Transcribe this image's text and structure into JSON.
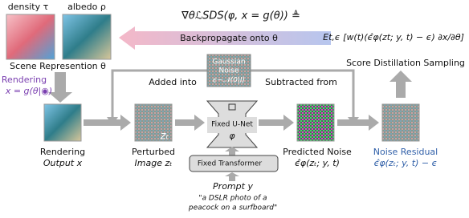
{
  "scene": {
    "density_label": "density τ",
    "albedo_label": "albedo ρ",
    "caption": "Scene Represention θ"
  },
  "rendering": {
    "label": "Rendering",
    "formula": "x = g(θ|◉)"
  },
  "sds": {
    "gradient": "∇θℒSDS(φ, x = g(θ)) ≜",
    "expectation": "Et,ϵ [w(t)(ϵ̂φ(zt; y, t) − ϵ) ∂x/∂θ]",
    "title": "Score Distillation Sampling"
  },
  "backprop": "Backpropagate onto θ",
  "noise": {
    "title_lines": [
      "Gaussian",
      "Noise"
    ],
    "formula": "ϵ∼𝒩(0|I)"
  },
  "added": "Added into",
  "subtracted": "Subtracted from",
  "perturbed_overlay": "zₜ",
  "unet": {
    "label": "Fixed U-Net",
    "symbol": "φ"
  },
  "nodes": [
    {
      "caption_lines": [
        "Rendering",
        "Output x"
      ]
    },
    {
      "caption_lines": [
        "Perturbed",
        "Image zₜ"
      ]
    },
    {
      "caption_lines": [
        "Predicted Noise",
        "ϵ̂φ(zₜ; y, t)"
      ]
    },
    {
      "caption_lines": [
        "Noise Residual",
        "ϵ̂φ(zₜ; y, t) − ϵ"
      ]
    }
  ],
  "transformer": "Fixed Transformer",
  "prompt": {
    "label": "Prompt y",
    "text_lines": [
      "\"a DSLR photo of a",
      "peacock on a surfboard\""
    ]
  }
}
